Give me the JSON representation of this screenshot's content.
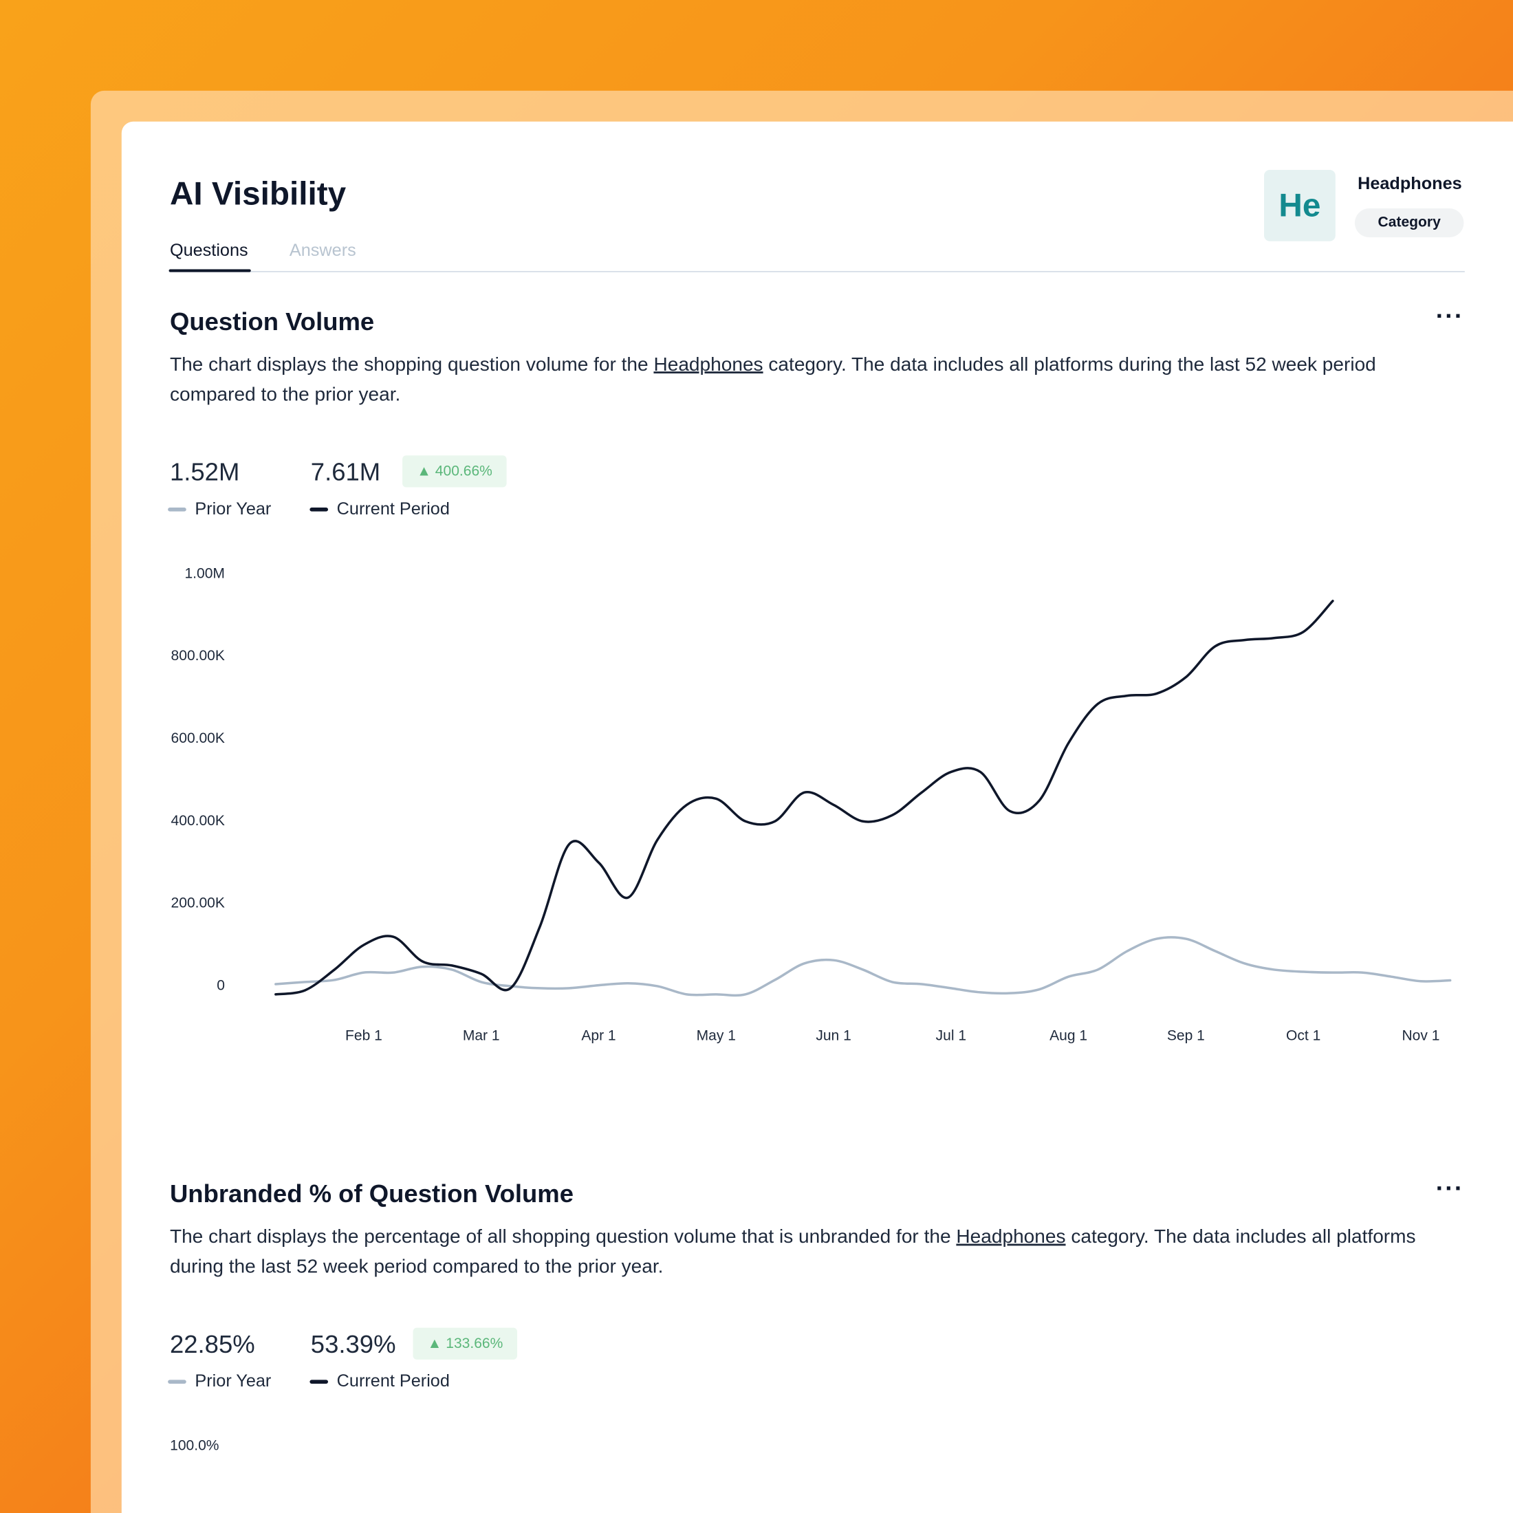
{
  "header": {
    "title": "AI Visibility",
    "tabs": [
      "Questions",
      "Answers"
    ],
    "badge": "He",
    "entity": "Headphones",
    "entity_type": "Category"
  },
  "chart_data": [
    {
      "type": "line",
      "title": "Question Volume",
      "menu": "···",
      "description": {
        "before": "The chart displays the shopping question volume for the ",
        "link": "Headphones",
        "after": " category. The data includes all platforms during the last 52 week period compared to the prior year."
      },
      "stats": {
        "prior": "1.52M",
        "current": "7.61M",
        "change": "400.66%"
      },
      "categories": [
        null,
        null,
        null,
        "Feb 1",
        null,
        null,
        null,
        "Mar 1",
        null,
        null,
        null,
        "Apr 1",
        null,
        null,
        null,
        "May 1",
        null,
        null,
        null,
        "Jun 1",
        null,
        null,
        null,
        "Jul 1",
        null,
        null,
        null,
        "Aug 1",
        null,
        null,
        null,
        "Sep 1",
        null,
        null,
        null,
        "Oct 1",
        null,
        null,
        null,
        "Nov 1",
        null
      ],
      "series": [
        {
          "name": "Prior Year",
          "color": "#a9b8c8",
          "values": [
            5000,
            10000,
            15000,
            33000,
            33000,
            47000,
            40000,
            10000,
            0,
            -5000,
            -5000,
            2000,
            7000,
            0,
            -20000,
            -20000,
            -20000,
            15000,
            55000,
            63000,
            40000,
            10000,
            5000,
            -5000,
            -15000,
            -17000,
            -8000,
            23000,
            40000,
            85000,
            115000,
            115000,
            85000,
            55000,
            40000,
            35000,
            33000,
            33000,
            23000,
            12000,
            14000
          ]
        },
        {
          "name": "Current Period",
          "color": "#0f172a",
          "values": [
            -20000,
            -10000,
            40000,
            100000,
            120000,
            60000,
            50000,
            30000,
            -5000,
            145000,
            345000,
            300000,
            215000,
            355000,
            440000,
            455000,
            400000,
            400000,
            470000,
            440000,
            400000,
            415000,
            470000,
            520000,
            520000,
            425000,
            450000,
            590000,
            685000,
            705000,
            710000,
            750000,
            825000,
            840000,
            845000,
            860000,
            935000,
            null,
            null,
            null,
            null
          ]
        }
      ],
      "ylim": [
        -45000,
        1000000
      ],
      "yticks": [
        0,
        {
          "value": 200000,
          "label": "200.00K"
        },
        {
          "value": 400000,
          "label": "400.00K"
        },
        {
          "value": 600000,
          "label": "600.00K"
        },
        {
          "value": 800000,
          "label": "800.00K"
        },
        {
          "value": 1000000,
          "label": "1.00M"
        }
      ],
      "grid": false
    },
    {
      "type": "line",
      "title": "Unbranded % of Question Volume",
      "menu": "···",
      "description": {
        "before": "The chart displays the percentage of all shopping question volume that is unbranded for the ",
        "link": "Headphones",
        "after": " category. The data includes all platforms during the last 52 week period compared to the prior year."
      },
      "stats": {
        "prior": "22.85%",
        "current": "53.39%",
        "change": "133.66%"
      },
      "series": [
        {
          "name": "Prior Year",
          "color": "#a9b8c8"
        },
        {
          "name": "Current Period",
          "color": "#0f172a"
        }
      ],
      "ylim": [
        0,
        100
      ],
      "yticks": [
        {
          "value": 100,
          "label": "100.0%"
        }
      ],
      "grid": false
    }
  ]
}
